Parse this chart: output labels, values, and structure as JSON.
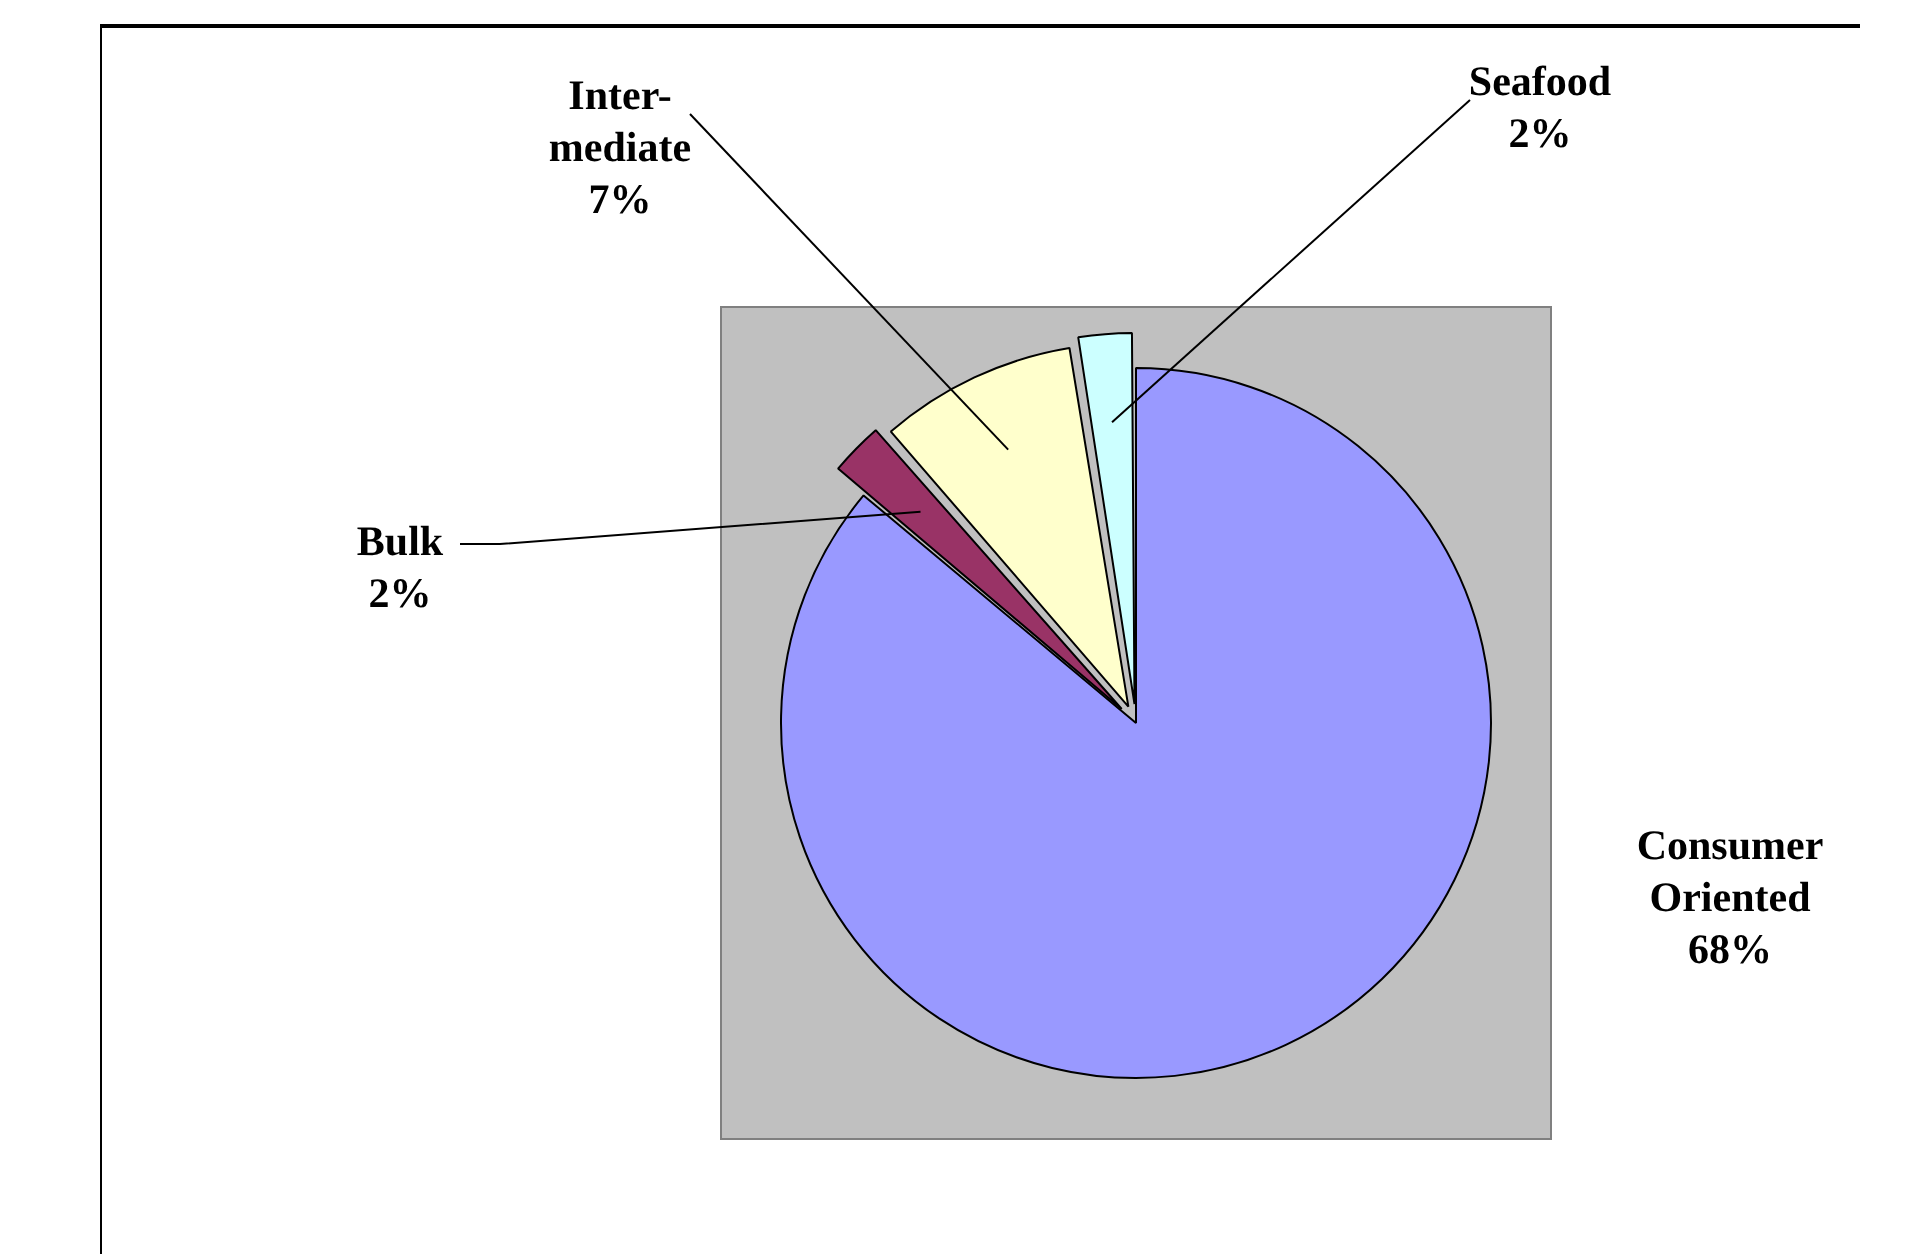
{
  "chart_data": {
    "type": "pie",
    "categories": [
      "Consumer Oriented",
      "Bulk",
      "Inter- mediate",
      "Seafood"
    ],
    "values": [
      68,
      2,
      7,
      2
    ],
    "value_labels": [
      "68%",
      "2%",
      "7%",
      "2%"
    ],
    "colors": [
      "#9999ff",
      "#993366",
      "#ffffcc",
      "#ccffff"
    ],
    "legend": false
  }
}
